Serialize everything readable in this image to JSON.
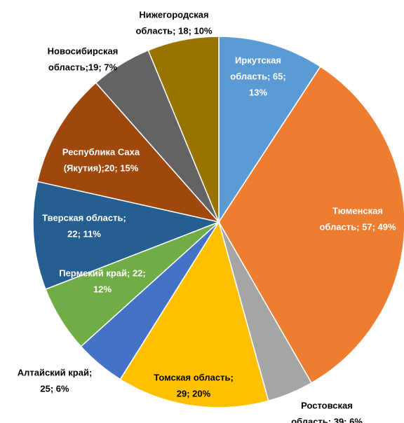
{
  "chart_data": {
    "type": "pie",
    "labels": [
      [
        "Иркутская",
        "область; 65;",
        "13%"
      ],
      [
        "Тюменская",
        "область; 57; 49%"
      ],
      [
        "Ростовская",
        "область; 39; 6%"
      ],
      [
        "Томская область;",
        "29; 20%"
      ],
      [
        "Алтайский край;",
        "25; 6%"
      ],
      [
        "Пермский край; 22;",
        "12%"
      ],
      [
        "Тверская область;",
        "22; 11%"
      ],
      [
        "Республика Саха",
        "(Якутия);20;  15%"
      ],
      [
        "Новосибирская",
        "область;19; 7%"
      ],
      [
        "Нижегородская",
        "область; 18; 10%"
      ]
    ],
    "values": [
      9.2,
      32.5,
      4.0,
      13.2,
      4.4,
      5.8,
      9.4,
      10.0,
      5.3,
      6.2
    ],
    "colors": [
      "#5b9bd5",
      "#ed7d31",
      "#a5a5a5",
      "#ffc000",
      "#4472c4",
      "#70ad47",
      "#255e91",
      "#9e480e",
      "#636363",
      "#997300"
    ]
  }
}
